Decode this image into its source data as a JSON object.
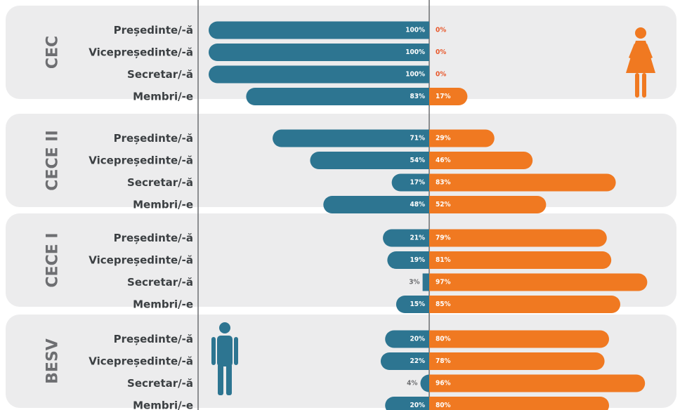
{
  "colors": {
    "male": "#2d7591",
    "female": "#f07921",
    "panel": "#ececed",
    "zero_label": "#e8572a",
    "small_label": "#6d6e71"
  },
  "icons": {
    "female": "female-figure-icon",
    "male": "male-figure-icon"
  },
  "chart_data": {
    "type": "bar",
    "series": [
      {
        "name": "",
        "color": "#2d7591"
      },
      {
        "name": "",
        "color": "#f07921"
      }
    ],
    "groups": [
      {
        "name": "CEC",
        "rows": [
          {
            "label": "Președinte/-ă",
            "male": 100,
            "female": 0,
            "male_text": "100%",
            "female_text": "0%"
          },
          {
            "label": "Vicepreședinte/-ă",
            "male": 100,
            "female": 0,
            "male_text": "100%",
            "female_text": "0%"
          },
          {
            "label": "Secretar/-ă",
            "male": 100,
            "female": 0,
            "male_text": "100%",
            "female_text": "0%"
          },
          {
            "label": "Membri/-e",
            "male": 83,
            "female": 17,
            "male_text": "83%",
            "female_text": "17%"
          }
        ]
      },
      {
        "name": "CECE II",
        "rows": [
          {
            "label": "Președinte/-ă",
            "male": 71,
            "female": 29,
            "male_text": "71%",
            "female_text": "29%"
          },
          {
            "label": "Vicepreședinte/-ă",
            "male": 54,
            "female": 46,
            "male_text": "54%",
            "female_text": "46%"
          },
          {
            "label": "Secretar/-ă",
            "male": 17,
            "female": 83,
            "male_text": "17%",
            "female_text": "83%"
          },
          {
            "label": "Membri/-e",
            "male": 48,
            "female": 52,
            "male_text": "48%",
            "female_text": "52%"
          }
        ]
      },
      {
        "name": "CECE I",
        "rows": [
          {
            "label": "Președinte/-ă",
            "male": 21,
            "female": 79,
            "male_text": "21%",
            "female_text": "79%"
          },
          {
            "label": "Vicepreședinte/-ă",
            "male": 19,
            "female": 81,
            "male_text": "19%",
            "female_text": "81%"
          },
          {
            "label": "Secretar/-ă",
            "male": 3,
            "female": 97,
            "male_text": "3%",
            "female_text": "97%"
          },
          {
            "label": "Membri/-e",
            "male": 15,
            "female": 85,
            "male_text": "15%",
            "female_text": "85%"
          }
        ]
      },
      {
        "name": "BESV",
        "rows": [
          {
            "label": "Președinte/-ă",
            "male": 20,
            "female": 80,
            "male_text": "20%",
            "female_text": "80%"
          },
          {
            "label": "Vicepreședinte/-ă",
            "male": 22,
            "female": 78,
            "male_text": "22%",
            "female_text": "78%"
          },
          {
            "label": "Secretar/-ă",
            "male": 4,
            "female": 96,
            "male_text": "4%",
            "female_text": "96%"
          },
          {
            "label": "Membri/-e",
            "male": 20,
            "female": 80,
            "male_text": "20%",
            "female_text": "80%"
          }
        ]
      }
    ],
    "xlim": [
      0,
      100
    ],
    "grid": false,
    "legend": "none"
  }
}
